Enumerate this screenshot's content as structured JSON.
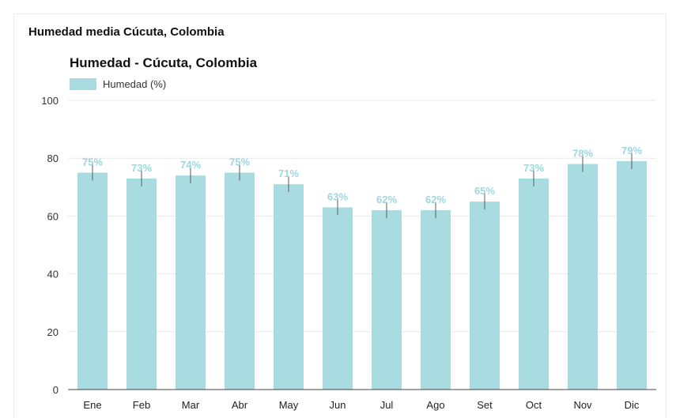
{
  "page": {
    "outer_title": "Humedad media Cúcuta, Colombia"
  },
  "chart_data": {
    "type": "bar",
    "title": "Humedad - Cúcuta, Colombia",
    "xlabel": "",
    "ylabel": "",
    "categories": [
      "Ene",
      "Feb",
      "Mar",
      "Abr",
      "May",
      "Jun",
      "Jul",
      "Ago",
      "Set",
      "Oct",
      "Nov",
      "Dic"
    ],
    "series": [
      {
        "name": "Humedad (%)",
        "values": [
          75,
          73,
          74,
          75,
          71,
          63,
          62,
          62,
          65,
          73,
          78,
          79
        ],
        "data_labels": [
          "75%",
          "73%",
          "74%",
          "75%",
          "71%",
          "63%",
          "62%",
          "62%",
          "65%",
          "73%",
          "78%",
          "79%"
        ],
        "color": "#a9dce0",
        "label_color": "#9ed6dc",
        "error_bar_color": "#5a5a5a"
      }
    ],
    "ylim": [
      0,
      100
    ],
    "yticks": [
      0,
      20,
      40,
      60,
      80,
      100
    ],
    "grid": true,
    "grid_color": "#e8e8e8",
    "legend": "top-left"
  }
}
